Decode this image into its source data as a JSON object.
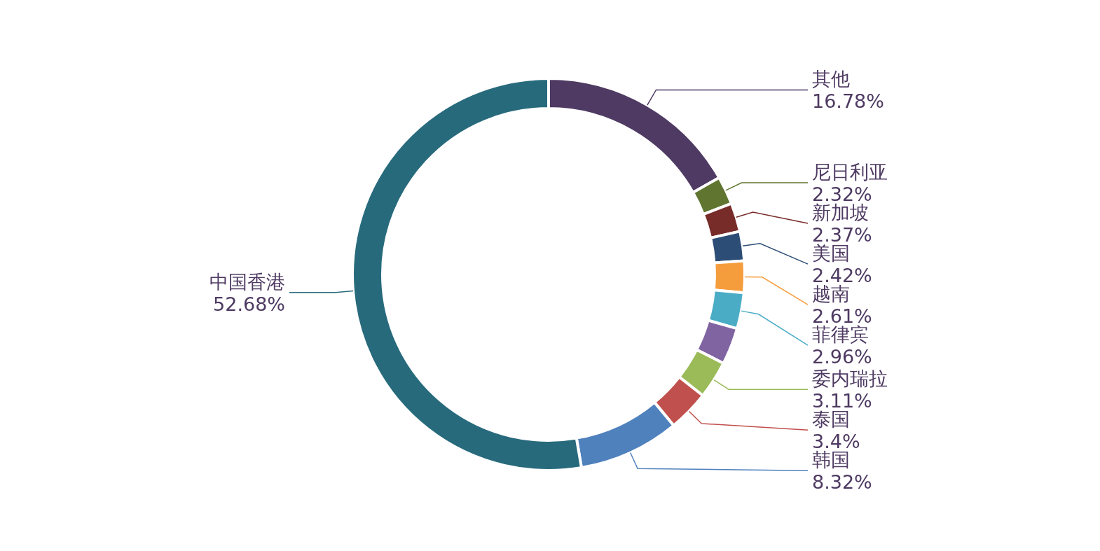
{
  "chart_data": {
    "type": "donut",
    "categories": [
      "其他",
      "尼日利亚",
      "新加坡",
      "美国",
      "越南",
      "菲律宾",
      null,
      "委内瑞拉",
      "泰国",
      "韩国",
      "中国香港"
    ],
    "values": [
      16.78,
      2.32,
      2.37,
      2.42,
      2.61,
      2.96,
      3.03,
      3.11,
      3.4,
      8.32,
      52.68
    ],
    "value_labels": [
      "16.78%",
      "2.32%",
      "2.37%",
      "2.42%",
      "2.61%",
      "2.96%",
      null,
      "3.11%",
      "3.4%",
      "8.32%",
      "52.68%"
    ],
    "colors": [
      "#4e3a62",
      "#5f7530",
      "#772c2a",
      "#2c4d75",
      "#f59d3d",
      "#4bacc6",
      "#8064a2",
      "#9bbb59",
      "#c0504d",
      "#4f81bd",
      "#276a7c"
    ]
  }
}
